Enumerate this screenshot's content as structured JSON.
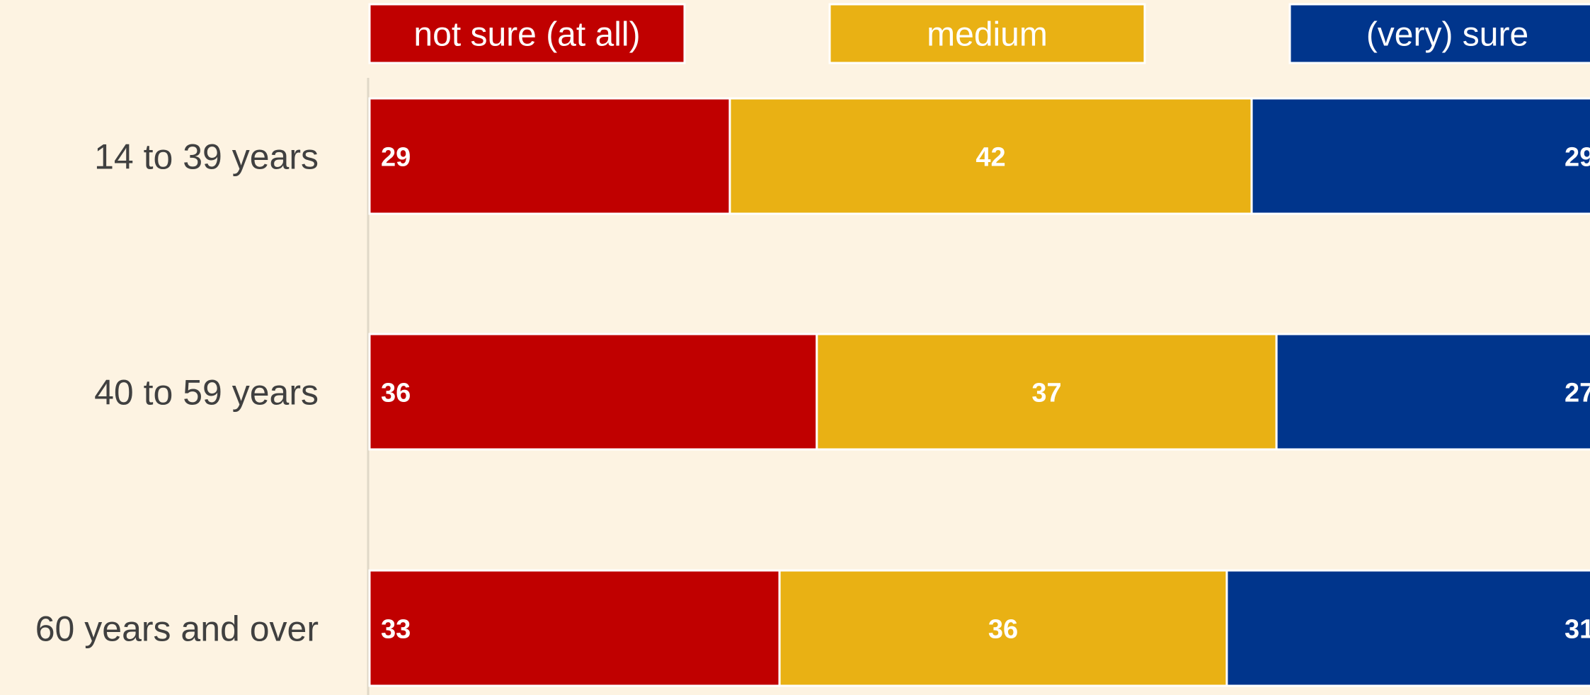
{
  "chart_data": {
    "type": "bar",
    "orientation": "horizontal",
    "stacked": true,
    "categories": [
      "14 to 39 years",
      "40 to 59 years",
      "60 years and over"
    ],
    "series": [
      {
        "name": "not sure (at all)",
        "values": [
          29,
          36,
          33
        ],
        "color": "#c00000"
      },
      {
        "name": "medium",
        "values": [
          42,
          37,
          36
        ],
        "color": "#e9b114"
      },
      {
        "name": "(very) sure",
        "values": [
          29,
          27,
          31
        ],
        "color": "#00358c"
      }
    ],
    "xlim": [
      0,
      100
    ],
    "legend_position": "top",
    "grid": false
  }
}
